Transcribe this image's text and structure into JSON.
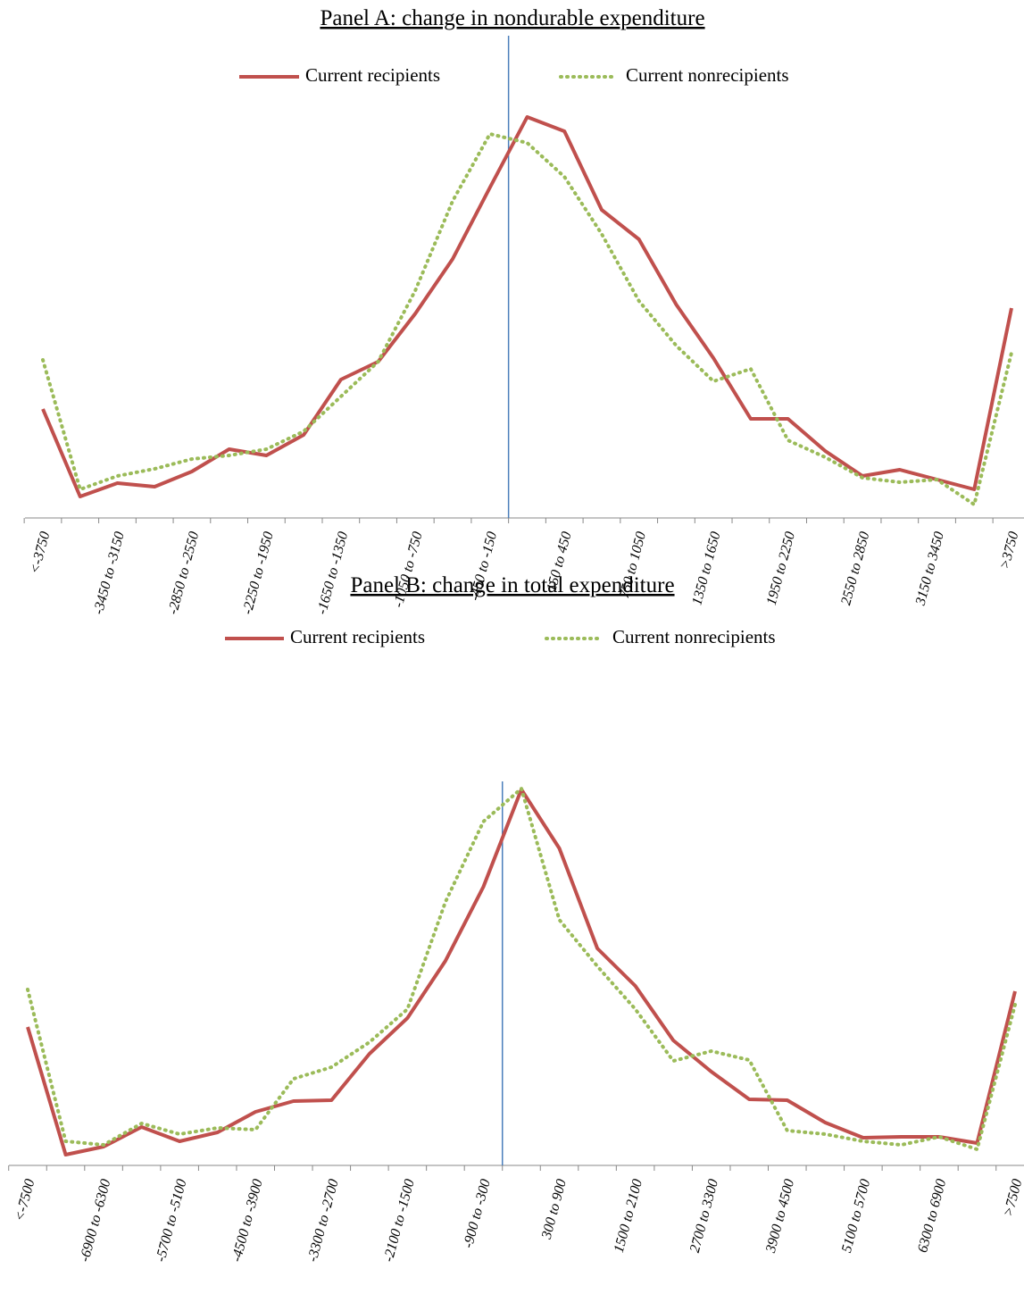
{
  "chart_data": [
    {
      "type": "line",
      "title": "Panel A: change in nondurable expenditure",
      "categories": [
        "<-3750",
        null,
        "-3450 to -3150",
        null,
        "-2850 to -2550",
        null,
        "-2250 to -1950",
        null,
        "-1650 to -1350",
        null,
        "-1050 to -750",
        null,
        "-450 to -150",
        null,
        "150 to 450",
        null,
        "750 to 1050",
        null,
        "1350 to 1650",
        null,
        "1950 to 2250",
        null,
        "2550 to 2850",
        null,
        "3150 to 3450",
        null,
        ">3750"
      ],
      "series": [
        {
          "name": "Current recipients",
          "color": "#c0504d",
          "values": [
            122,
            24,
            39,
            35,
            52,
            77,
            70,
            93,
            155,
            175,
            229,
            290,
            370,
            449,
            433,
            345,
            312,
            239,
            179,
            111,
            111,
            75,
            47,
            54,
            43,
            32,
            235
          ]
        },
        {
          "name": "Current nonrecipients",
          "color": "#9bbb59",
          "values": [
            177,
            32,
            47,
            55,
            66,
            70,
            77,
            97,
            136,
            175,
            255,
            355,
            430,
            420,
            382,
            318,
            243,
            193,
            153,
            167,
            87,
            68,
            45,
            40,
            43,
            15,
            185
          ]
        }
      ],
      "ylim": [
        0,
        540
      ]
    },
    {
      "type": "line",
      "title": "Panel B: change in total expenditure",
      "categories": [
        "<-7500",
        null,
        "-6900 to -6300",
        null,
        "-5700 to -5100",
        null,
        "-4500 to -3900",
        null,
        "-3300 to -2700",
        null,
        "-2100 to -1500",
        null,
        "-900 to -300",
        null,
        "300 to 900",
        null,
        "1500 to 2100",
        null,
        "2700 to 3300",
        null,
        "3900 to 4500",
        null,
        "5100 to 5700",
        null,
        "6300 to 6900",
        null,
        ">7500"
      ],
      "series": [
        {
          "name": "Current recipients",
          "color": "#c0504d",
          "values": [
            155,
            12,
            21,
            43,
            27,
            37,
            60,
            72,
            73,
            125,
            165,
            229,
            312,
            421,
            355,
            243,
            201,
            140,
            105,
            74,
            73,
            48,
            31,
            32,
            32,
            25,
            195
          ]
        },
        {
          "name": "Current nonrecipients",
          "color": "#9bbb59",
          "values": [
            197,
            27,
            23,
            47,
            35,
            42,
            40,
            97,
            110,
            138,
            175,
            295,
            385,
            422,
            275,
            223,
            175,
            117,
            128,
            118,
            39,
            35,
            27,
            23,
            32,
            18,
            180
          ]
        }
      ],
      "ylim": [
        0,
        430
      ]
    }
  ]
}
